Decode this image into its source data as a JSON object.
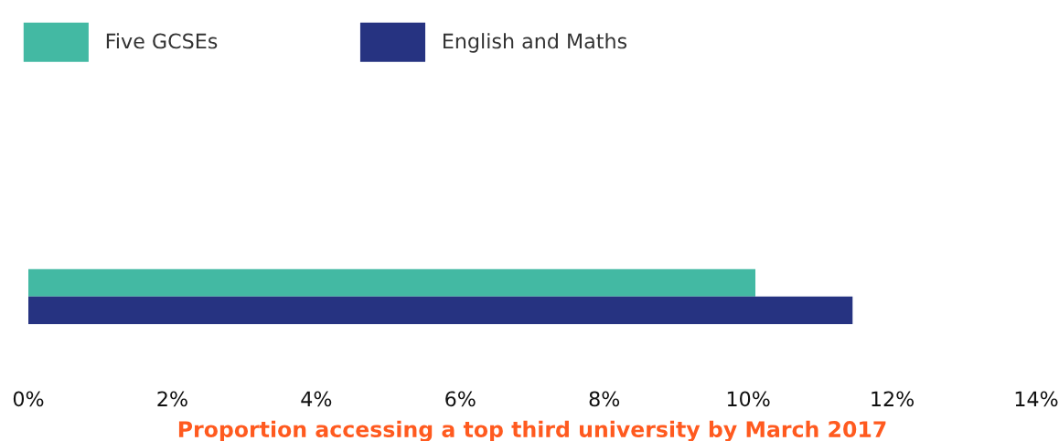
{
  "chart_data": {
    "type": "bar",
    "orientation": "horizontal",
    "categories": [
      null
    ],
    "series": [
      {
        "name": "Five GCSEs",
        "color": "#43b9a3",
        "values": [
          10.1
        ]
      },
      {
        "name": "English and Maths",
        "color": "#263381",
        "values": [
          11.45
        ]
      }
    ],
    "xlim": [
      0,
      14
    ],
    "xticks": [
      {
        "value": 0,
        "label": "0%"
      },
      {
        "value": 2,
        "label": "2%"
      },
      {
        "value": 4,
        "label": "4%"
      },
      {
        "value": 6,
        "label": "6%"
      },
      {
        "value": 8,
        "label": "8%"
      },
      {
        "value": 10,
        "label": "10%"
      },
      {
        "value": 12,
        "label": "12%"
      },
      {
        "value": 14,
        "label": "14%"
      }
    ],
    "xlabel": "Proportion accessing a top third university by March 2017",
    "tick_labels": "x",
    "grid": false,
    "legend": "top left"
  }
}
